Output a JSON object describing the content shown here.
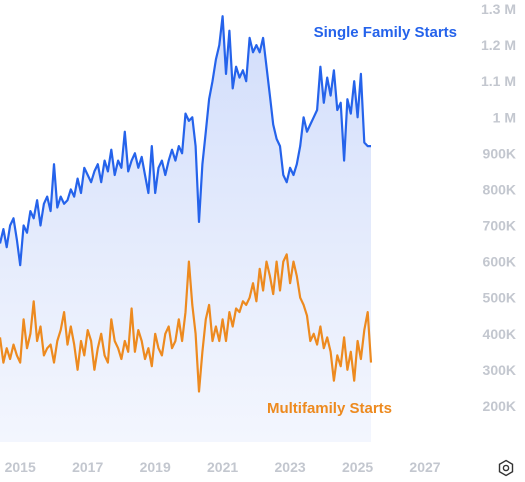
{
  "chart_data": {
    "type": "area",
    "x_axis": {
      "ticks": [
        "2015",
        "2017",
        "2019",
        "2021",
        "2023",
        "2025",
        "2027"
      ],
      "range": [
        2014.4,
        2027.8
      ]
    },
    "y_axis": {
      "ticks": [
        "200K",
        "300K",
        "400K",
        "500K",
        "600K",
        "700K",
        "800K",
        "900K",
        "1 M",
        "1.1 M",
        "1.2 M",
        "1.3 M"
      ],
      "range": [
        100000,
        1300000
      ]
    },
    "grid": false,
    "series": [
      {
        "name": "Single Family Starts",
        "color": "#2563eb",
        "fill": "#dfe7fc",
        "points": [
          [
            2014.4,
            650000
          ],
          [
            2014.5,
            690000
          ],
          [
            2014.6,
            640000
          ],
          [
            2014.7,
            700000
          ],
          [
            2014.8,
            720000
          ],
          [
            2014.9,
            660000
          ],
          [
            2015.0,
            590000
          ],
          [
            2015.1,
            700000
          ],
          [
            2015.2,
            680000
          ],
          [
            2015.3,
            740000
          ],
          [
            2015.4,
            720000
          ],
          [
            2015.5,
            770000
          ],
          [
            2015.6,
            700000
          ],
          [
            2015.7,
            760000
          ],
          [
            2015.8,
            780000
          ],
          [
            2015.9,
            740000
          ],
          [
            2016.0,
            870000
          ],
          [
            2016.1,
            750000
          ],
          [
            2016.2,
            780000
          ],
          [
            2016.3,
            760000
          ],
          [
            2016.4,
            770000
          ],
          [
            2016.5,
            800000
          ],
          [
            2016.6,
            780000
          ],
          [
            2016.7,
            830000
          ],
          [
            2016.8,
            790000
          ],
          [
            2016.9,
            860000
          ],
          [
            2017.0,
            840000
          ],
          [
            2017.1,
            820000
          ],
          [
            2017.2,
            850000
          ],
          [
            2017.3,
            870000
          ],
          [
            2017.4,
            820000
          ],
          [
            2017.5,
            880000
          ],
          [
            2017.6,
            850000
          ],
          [
            2017.7,
            910000
          ],
          [
            2017.8,
            840000
          ],
          [
            2017.9,
            880000
          ],
          [
            2018.0,
            860000
          ],
          [
            2018.1,
            960000
          ],
          [
            2018.2,
            850000
          ],
          [
            2018.3,
            880000
          ],
          [
            2018.4,
            900000
          ],
          [
            2018.5,
            860000
          ],
          [
            2018.6,
            890000
          ],
          [
            2018.7,
            840000
          ],
          [
            2018.8,
            790000
          ],
          [
            2018.9,
            920000
          ],
          [
            2019.0,
            790000
          ],
          [
            2019.1,
            860000
          ],
          [
            2019.2,
            880000
          ],
          [
            2019.3,
            840000
          ],
          [
            2019.4,
            880000
          ],
          [
            2019.5,
            910000
          ],
          [
            2019.6,
            880000
          ],
          [
            2019.7,
            920000
          ],
          [
            2019.8,
            900000
          ],
          [
            2019.9,
            1010000
          ],
          [
            2020.0,
            990000
          ],
          [
            2020.1,
            1000000
          ],
          [
            2020.2,
            920000
          ],
          [
            2020.3,
            710000
          ],
          [
            2020.4,
            870000
          ],
          [
            2020.5,
            960000
          ],
          [
            2020.6,
            1050000
          ],
          [
            2020.7,
            1100000
          ],
          [
            2020.8,
            1160000
          ],
          [
            2020.9,
            1200000
          ],
          [
            2021.0,
            1280000
          ],
          [
            2021.1,
            1120000
          ],
          [
            2021.2,
            1240000
          ],
          [
            2021.3,
            1080000
          ],
          [
            2021.4,
            1140000
          ],
          [
            2021.5,
            1110000
          ],
          [
            2021.6,
            1130000
          ],
          [
            2021.7,
            1100000
          ],
          [
            2021.8,
            1220000
          ],
          [
            2021.9,
            1180000
          ],
          [
            2022.0,
            1200000
          ],
          [
            2022.1,
            1180000
          ],
          [
            2022.2,
            1220000
          ],
          [
            2022.3,
            1140000
          ],
          [
            2022.4,
            1060000
          ],
          [
            2022.5,
            980000
          ],
          [
            2022.6,
            940000
          ],
          [
            2022.7,
            920000
          ],
          [
            2022.8,
            840000
          ],
          [
            2022.9,
            820000
          ],
          [
            2023.0,
            860000
          ],
          [
            2023.1,
            840000
          ],
          [
            2023.2,
            870000
          ],
          [
            2023.3,
            920000
          ],
          [
            2023.4,
            1000000
          ],
          [
            2023.5,
            960000
          ],
          [
            2023.6,
            980000
          ],
          [
            2023.7,
            1000000
          ],
          [
            2023.8,
            1020000
          ],
          [
            2023.9,
            1140000
          ],
          [
            2024.0,
            1040000
          ],
          [
            2024.1,
            1110000
          ],
          [
            2024.2,
            1060000
          ],
          [
            2024.3,
            1130000
          ],
          [
            2024.4,
            1020000
          ],
          [
            2024.5,
            1040000
          ],
          [
            2024.6,
            880000
          ],
          [
            2024.7,
            1050000
          ],
          [
            2024.8,
            1010000
          ],
          [
            2024.9,
            1100000
          ],
          [
            2025.0,
            1000000
          ],
          [
            2025.1,
            1120000
          ],
          [
            2025.2,
            930000
          ],
          [
            2025.3,
            920000
          ],
          [
            2025.4,
            920000
          ]
        ]
      },
      {
        "name": "Multifamily Starts",
        "color": "#ed8a1f",
        "points": [
          [
            2014.4,
            390000
          ],
          [
            2014.5,
            320000
          ],
          [
            2014.6,
            360000
          ],
          [
            2014.7,
            330000
          ],
          [
            2014.8,
            370000
          ],
          [
            2014.9,
            340000
          ],
          [
            2015.0,
            320000
          ],
          [
            2015.1,
            440000
          ],
          [
            2015.2,
            360000
          ],
          [
            2015.3,
            400000
          ],
          [
            2015.4,
            490000
          ],
          [
            2015.5,
            380000
          ],
          [
            2015.6,
            420000
          ],
          [
            2015.7,
            340000
          ],
          [
            2015.8,
            360000
          ],
          [
            2015.9,
            370000
          ],
          [
            2016.0,
            320000
          ],
          [
            2016.1,
            380000
          ],
          [
            2016.2,
            410000
          ],
          [
            2016.3,
            460000
          ],
          [
            2016.4,
            370000
          ],
          [
            2016.5,
            420000
          ],
          [
            2016.6,
            370000
          ],
          [
            2016.7,
            300000
          ],
          [
            2016.8,
            380000
          ],
          [
            2016.9,
            340000
          ],
          [
            2017.0,
            410000
          ],
          [
            2017.1,
            380000
          ],
          [
            2017.2,
            300000
          ],
          [
            2017.3,
            360000
          ],
          [
            2017.4,
            400000
          ],
          [
            2017.5,
            340000
          ],
          [
            2017.6,
            320000
          ],
          [
            2017.7,
            440000
          ],
          [
            2017.8,
            380000
          ],
          [
            2017.9,
            360000
          ],
          [
            2018.0,
            330000
          ],
          [
            2018.1,
            380000
          ],
          [
            2018.2,
            350000
          ],
          [
            2018.3,
            470000
          ],
          [
            2018.4,
            350000
          ],
          [
            2018.5,
            410000
          ],
          [
            2018.6,
            380000
          ],
          [
            2018.7,
            330000
          ],
          [
            2018.8,
            360000
          ],
          [
            2018.9,
            310000
          ],
          [
            2019.0,
            400000
          ],
          [
            2019.1,
            360000
          ],
          [
            2019.2,
            340000
          ],
          [
            2019.3,
            400000
          ],
          [
            2019.4,
            420000
          ],
          [
            2019.5,
            360000
          ],
          [
            2019.6,
            380000
          ],
          [
            2019.7,
            440000
          ],
          [
            2019.8,
            380000
          ],
          [
            2019.9,
            460000
          ],
          [
            2020.0,
            600000
          ],
          [
            2020.1,
            480000
          ],
          [
            2020.2,
            400000
          ],
          [
            2020.3,
            240000
          ],
          [
            2020.4,
            350000
          ],
          [
            2020.5,
            440000
          ],
          [
            2020.6,
            480000
          ],
          [
            2020.7,
            380000
          ],
          [
            2020.8,
            420000
          ],
          [
            2020.9,
            380000
          ],
          [
            2021.0,
            440000
          ],
          [
            2021.1,
            380000
          ],
          [
            2021.2,
            460000
          ],
          [
            2021.3,
            420000
          ],
          [
            2021.4,
            470000
          ],
          [
            2021.5,
            460000
          ],
          [
            2021.6,
            490000
          ],
          [
            2021.7,
            480000
          ],
          [
            2021.8,
            500000
          ],
          [
            2021.9,
            540000
          ],
          [
            2022.0,
            490000
          ],
          [
            2022.1,
            580000
          ],
          [
            2022.2,
            520000
          ],
          [
            2022.3,
            600000
          ],
          [
            2022.4,
            560000
          ],
          [
            2022.5,
            510000
          ],
          [
            2022.6,
            600000
          ],
          [
            2022.7,
            520000
          ],
          [
            2022.8,
            600000
          ],
          [
            2022.9,
            620000
          ],
          [
            2023.0,
            540000
          ],
          [
            2023.1,
            600000
          ],
          [
            2023.2,
            560000
          ],
          [
            2023.3,
            500000
          ],
          [
            2023.4,
            480000
          ],
          [
            2023.5,
            450000
          ],
          [
            2023.6,
            380000
          ],
          [
            2023.7,
            400000
          ],
          [
            2023.8,
            370000
          ],
          [
            2023.9,
            420000
          ],
          [
            2024.0,
            360000
          ],
          [
            2024.1,
            390000
          ],
          [
            2024.2,
            350000
          ],
          [
            2024.3,
            270000
          ],
          [
            2024.4,
            340000
          ],
          [
            2024.5,
            310000
          ],
          [
            2024.6,
            390000
          ],
          [
            2024.7,
            300000
          ],
          [
            2024.8,
            350000
          ],
          [
            2024.9,
            270000
          ],
          [
            2025.0,
            380000
          ],
          [
            2025.1,
            330000
          ],
          [
            2025.2,
            410000
          ],
          [
            2025.3,
            460000
          ],
          [
            2025.4,
            320000
          ]
        ]
      }
    ]
  },
  "icons": {
    "settings": "settings-icon"
  }
}
